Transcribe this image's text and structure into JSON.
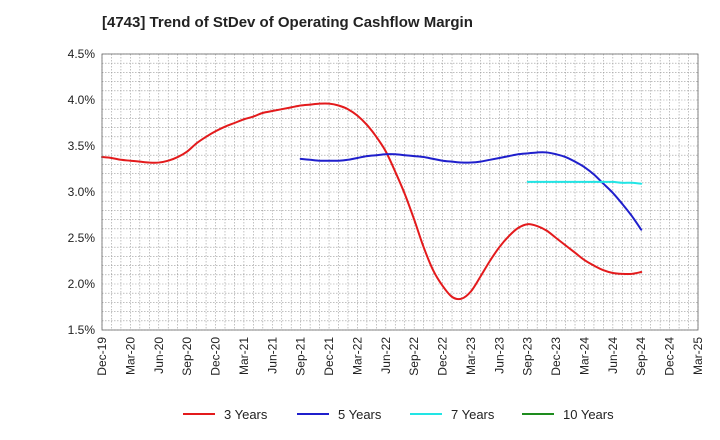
{
  "chart_data": {
    "type": "line",
    "title": "[4743]  Trend of StDev of Operating Cashflow Margin",
    "xlabel": "",
    "ylabel": "",
    "x_tick_labels": [
      "Dec-19",
      "Mar-20",
      "Jun-20",
      "Sep-20",
      "Dec-20",
      "Mar-21",
      "Jun-21",
      "Sep-21",
      "Dec-21",
      "Mar-22",
      "Jun-22",
      "Sep-22",
      "Dec-22",
      "Mar-23",
      "Jun-23",
      "Sep-23",
      "Dec-23",
      "Mar-24",
      "Jun-24",
      "Sep-24",
      "Dec-24",
      "Mar-25"
    ],
    "y_tick_labels": [
      "1.5%",
      "2.0%",
      "2.5%",
      "3.0%",
      "3.5%",
      "4.0%",
      "4.5%"
    ],
    "ylim": [
      1.5,
      4.5
    ],
    "grid": true,
    "legend_position": "bottom",
    "series": [
      {
        "name": "3 Years",
        "color": "#e31a1c",
        "x": [
          "Dec-19",
          "Jan-20",
          "Feb-20",
          "Mar-20",
          "Apr-20",
          "May-20",
          "Jun-20",
          "Jul-20",
          "Aug-20",
          "Sep-20",
          "Oct-20",
          "Nov-20",
          "Dec-20",
          "Jan-21",
          "Feb-21",
          "Mar-21",
          "Apr-21",
          "May-21",
          "Jun-21",
          "Jul-21",
          "Aug-21",
          "Sep-21",
          "Oct-21",
          "Nov-21",
          "Dec-21",
          "Jan-22",
          "Feb-22",
          "Mar-22",
          "Apr-22",
          "May-22",
          "Jun-22",
          "Jul-22",
          "Aug-22",
          "Sep-22",
          "Oct-22",
          "Nov-22",
          "Dec-22",
          "Jan-23",
          "Feb-23",
          "Mar-23",
          "Apr-23",
          "May-23",
          "Jun-23",
          "Jul-23",
          "Aug-23",
          "Sep-23",
          "Oct-23",
          "Nov-23",
          "Dec-23",
          "Jan-24",
          "Feb-24",
          "Mar-24",
          "Apr-24",
          "May-24",
          "Jun-24",
          "Jul-24",
          "Aug-24",
          "Sep-24"
        ],
        "values": [
          3.38,
          3.37,
          3.35,
          3.34,
          3.33,
          3.32,
          3.32,
          3.34,
          3.38,
          3.44,
          3.53,
          3.6,
          3.66,
          3.71,
          3.75,
          3.79,
          3.82,
          3.86,
          3.88,
          3.9,
          3.92,
          3.94,
          3.95,
          3.96,
          3.96,
          3.94,
          3.9,
          3.83,
          3.73,
          3.6,
          3.44,
          3.22,
          2.98,
          2.7,
          2.4,
          2.15,
          1.98,
          1.86,
          1.84,
          1.92,
          2.08,
          2.25,
          2.4,
          2.52,
          2.61,
          2.65,
          2.63,
          2.58,
          2.5,
          2.42,
          2.34,
          2.26,
          2.2,
          2.15,
          2.12,
          2.11,
          2.11,
          2.13
        ]
      },
      {
        "name": "5 Years",
        "color": "#1f1fcc",
        "x": [
          "Sep-21",
          "Oct-21",
          "Nov-21",
          "Dec-21",
          "Jan-22",
          "Feb-22",
          "Mar-22",
          "Apr-22",
          "May-22",
          "Jun-22",
          "Jul-22",
          "Aug-22",
          "Sep-22",
          "Oct-22",
          "Nov-22",
          "Dec-22",
          "Jan-23",
          "Feb-23",
          "Mar-23",
          "Apr-23",
          "May-23",
          "Jun-23",
          "Jul-23",
          "Aug-23",
          "Sep-23",
          "Oct-23",
          "Nov-23",
          "Dec-23",
          "Jan-24",
          "Feb-24",
          "Mar-24",
          "Apr-24",
          "May-24",
          "Jun-24",
          "Jul-24",
          "Aug-24",
          "Sep-24"
        ],
        "values": [
          3.36,
          3.35,
          3.34,
          3.34,
          3.34,
          3.35,
          3.37,
          3.39,
          3.4,
          3.41,
          3.41,
          3.4,
          3.39,
          3.38,
          3.36,
          3.34,
          3.33,
          3.32,
          3.32,
          3.33,
          3.35,
          3.37,
          3.39,
          3.41,
          3.42,
          3.43,
          3.43,
          3.41,
          3.38,
          3.33,
          3.27,
          3.19,
          3.09,
          2.99,
          2.87,
          2.74,
          2.59
        ]
      },
      {
        "name": "7 Years",
        "color": "#22e5e5",
        "x": [
          "Sep-23",
          "Oct-23",
          "Nov-23",
          "Dec-23",
          "Jan-24",
          "Feb-24",
          "Mar-24",
          "Apr-24",
          "May-24",
          "Jun-24",
          "Jul-24",
          "Aug-24",
          "Sep-24"
        ],
        "values": [
          3.11,
          3.11,
          3.11,
          3.11,
          3.11,
          3.11,
          3.11,
          3.11,
          3.11,
          3.11,
          3.1,
          3.1,
          3.09
        ]
      },
      {
        "name": "10 Years",
        "color": "#1e8c1e",
        "x": [],
        "values": []
      }
    ]
  }
}
